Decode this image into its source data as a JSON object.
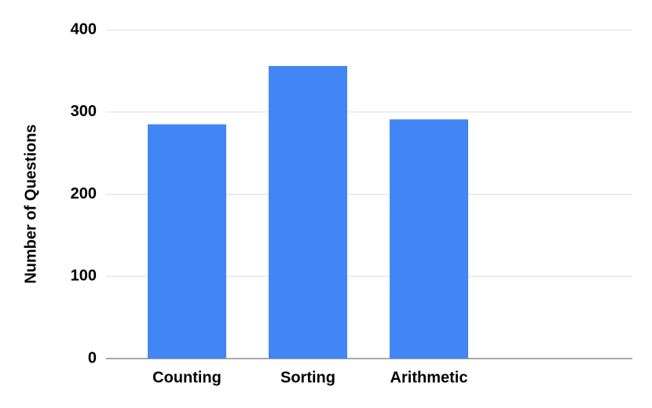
{
  "chart_data": {
    "type": "bar",
    "y_label": "Number of Questions",
    "categories": [
      "Counting",
      "Sorting",
      "Arithmetic",
      null
    ],
    "values": [
      285,
      356,
      291,
      null
    ],
    "color": "#4285f4",
    "ylim": [
      0,
      400
    ],
    "yticks": [
      0,
      100,
      200,
      300,
      400
    ],
    "grid": true
  }
}
